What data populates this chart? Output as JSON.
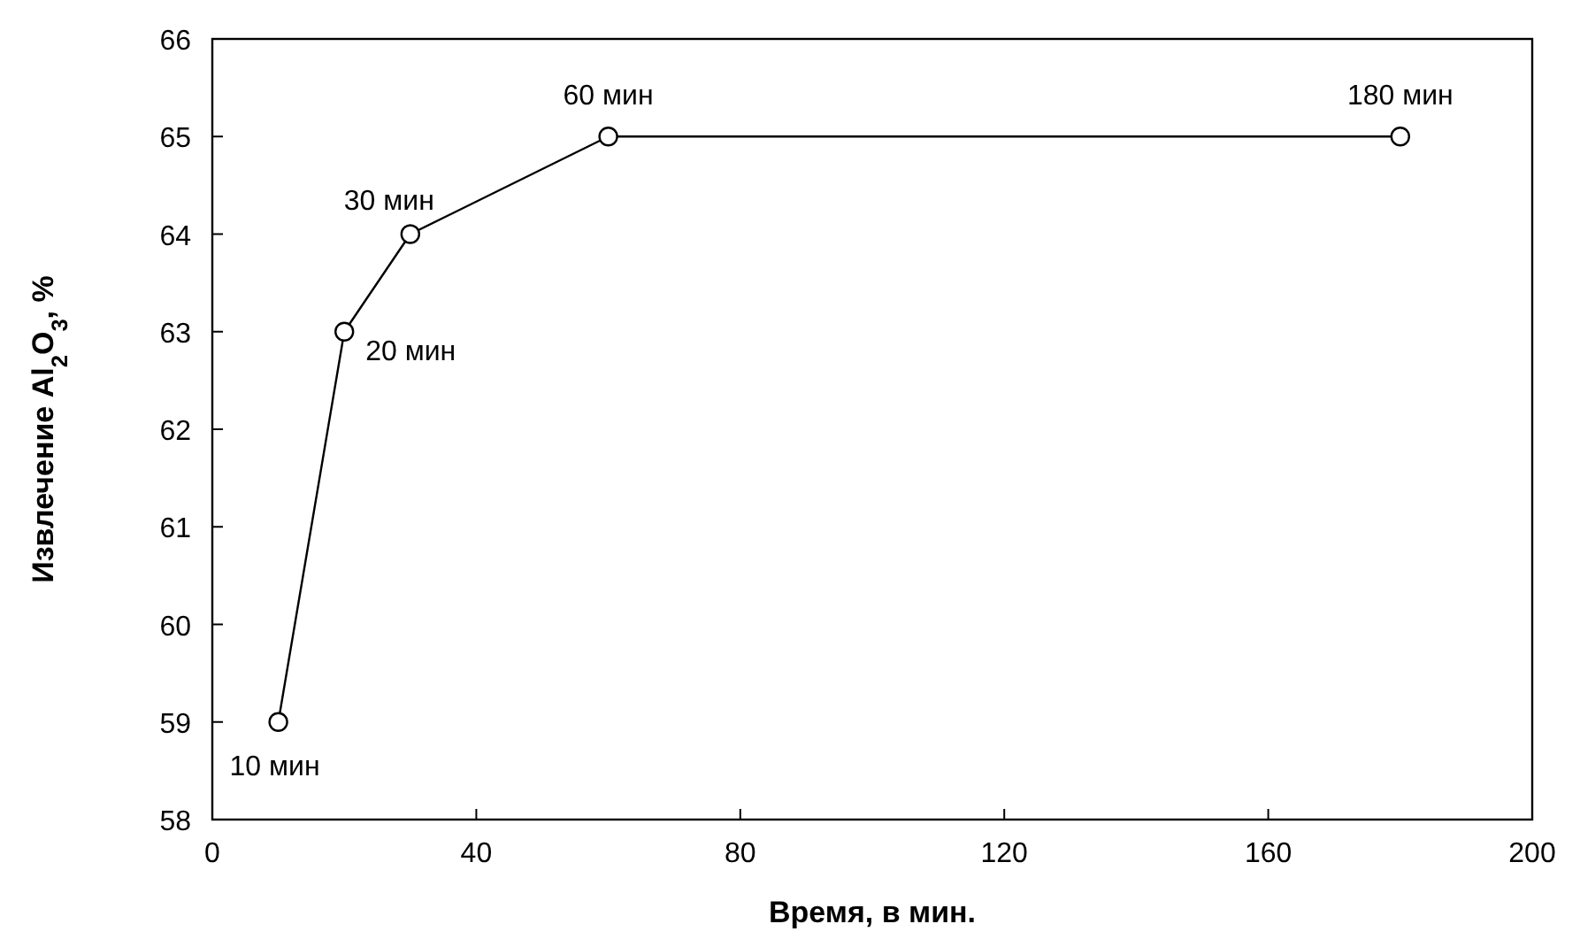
{
  "chart_data": {
    "type": "line",
    "xlabel": "Время, в мин.",
    "ylabel": "Извлечение Al$_{2}$O$_{3}$, %",
    "x": [
      10,
      20,
      30,
      60,
      180
    ],
    "series": [
      {
        "color": "#000000",
        "values": [
          59,
          63,
          64,
          65,
          65
        ]
      }
    ],
    "marker": "circle",
    "line_style": "solid",
    "grid": false,
    "xlim": [
      0,
      200
    ],
    "xticks": [
      0,
      40,
      80,
      120,
      160,
      200
    ],
    "ylim": [
      58,
      66
    ],
    "yticks": [
      58,
      59,
      60,
      61,
      62,
      63,
      64,
      65,
      66
    ],
    "annotations": [
      {
        "text": "10 мин",
        "x": 10,
        "y": 59
      },
      {
        "text": "20 мин",
        "x": 20,
        "y": 63
      },
      {
        "text": "30 мин",
        "x": 30,
        "y": 64
      },
      {
        "text": "60 мин",
        "x": 60,
        "y": 65
      },
      {
        "text": "180 мин",
        "x": 180,
        "y": 65
      }
    ]
  }
}
